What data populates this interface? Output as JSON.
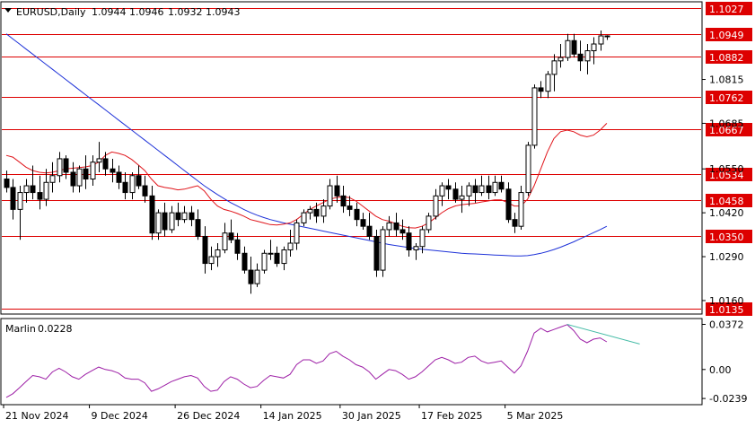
{
  "header": {
    "symbol": "EURUSD,Daily",
    "open": "1.0944",
    "high": "1.0946",
    "low": "1.0932",
    "close": "1.0943"
  },
  "indicator": {
    "name": "Marlin",
    "value": "0.0228",
    "ticks": [
      "0.0372",
      "0.00",
      "-0.0239"
    ]
  },
  "price_axis_ticks": [
    "1.0815",
    "1.0685",
    "1.0550",
    "1.0420",
    "1.0290",
    "1.0160"
  ],
  "levels": [
    {
      "label": "1.1027",
      "value": 1.1027
    },
    {
      "label": "1.0949",
      "value": 1.0949
    },
    {
      "label": "1.0882",
      "value": 1.0882
    },
    {
      "label": "1.0762",
      "value": 1.0762
    },
    {
      "label": "1.0667",
      "value": 1.0667
    },
    {
      "label": "1.0534",
      "value": 1.0534
    },
    {
      "label": "1.0458",
      "value": 1.0458
    },
    {
      "label": "1.0350",
      "value": 1.035
    },
    {
      "label": "1.0135",
      "value": 1.0135
    }
  ],
  "x_axis_labels": [
    "21 Nov 2024",
    "9 Dec 2024",
    "26 Dec 2024",
    "14 Jan 2025",
    "30 Jan 2025",
    "17 Feb 2025",
    "5 Mar 2025"
  ],
  "colors": {
    "level_line": "#dd0000",
    "level_label_bg": "#dd0000",
    "level_label_text": "#ffffff",
    "ma_slow": "#1e32d8",
    "ma_fast": "#e0151b",
    "indicator_line": "#9d1fa6",
    "trendline": "#44bba6",
    "candle_up": "#ffffff",
    "candle_down": "#000000",
    "frame": "#000000"
  },
  "chart_data": {
    "type": "candlestick",
    "symbol": "EURUSD",
    "timeframe": "Daily",
    "ylim": [
      1.012,
      1.1045
    ],
    "candles": [
      [
        1.052,
        1.0545,
        1.048,
        1.0495
      ],
      [
        1.0495,
        1.052,
        1.04,
        1.043
      ],
      [
        1.043,
        1.05,
        1.034,
        1.048
      ],
      [
        1.048,
        1.052,
        1.045,
        1.05
      ],
      [
        1.05,
        1.056,
        1.046,
        1.048
      ],
      [
        1.048,
        1.053,
        1.043,
        1.046
      ],
      [
        1.046,
        1.055,
        1.044,
        1.051
      ],
      [
        1.051,
        1.057,
        1.048,
        1.053
      ],
      [
        1.053,
        1.06,
        1.051,
        1.058
      ],
      [
        1.058,
        1.059,
        1.052,
        1.054
      ],
      [
        1.054,
        1.057,
        1.048,
        1.05
      ],
      [
        1.05,
        1.056,
        1.048,
        1.055
      ],
      [
        1.055,
        1.059,
        1.049,
        1.052
      ],
      [
        1.052,
        1.059,
        1.05,
        1.057
      ],
      [
        1.057,
        1.063,
        1.054,
        1.058
      ],
      [
        1.058,
        1.06,
        1.053,
        1.055
      ],
      [
        1.055,
        1.058,
        1.051,
        1.054
      ],
      [
        1.054,
        1.056,
        1.049,
        1.051
      ],
      [
        1.051,
        1.054,
        1.046,
        1.048
      ],
      [
        1.048,
        1.054,
        1.046,
        1.053
      ],
      [
        1.053,
        1.056,
        1.049,
        1.05
      ],
      [
        1.05,
        1.053,
        1.045,
        1.047
      ],
      [
        1.047,
        1.05,
        1.034,
        1.036
      ],
      [
        1.036,
        1.043,
        1.034,
        1.042
      ],
      [
        1.042,
        1.045,
        1.035,
        1.037
      ],
      [
        1.037,
        1.044,
        1.036,
        1.042
      ],
      [
        1.042,
        1.045,
        1.038,
        1.04
      ],
      [
        1.04,
        1.044,
        1.039,
        1.042
      ],
      [
        1.042,
        1.044,
        1.038,
        1.04
      ],
      [
        1.04,
        1.043,
        1.034,
        1.035
      ],
      [
        1.035,
        1.038,
        1.024,
        1.027
      ],
      [
        1.027,
        1.032,
        1.025,
        1.029
      ],
      [
        1.029,
        1.033,
        1.026,
        1.031
      ],
      [
        1.031,
        1.039,
        1.03,
        1.036
      ],
      [
        1.036,
        1.04,
        1.033,
        1.034
      ],
      [
        1.034,
        1.036,
        1.028,
        1.03
      ],
      [
        1.03,
        1.032,
        1.024,
        1.025
      ],
      [
        1.025,
        1.029,
        1.018,
        1.021
      ],
      [
        1.021,
        1.027,
        1.02,
        1.025
      ],
      [
        1.025,
        1.031,
        1.024,
        1.03
      ],
      [
        1.03,
        1.034,
        1.028,
        1.03
      ],
      [
        1.03,
        1.032,
        1.026,
        1.027
      ],
      [
        1.027,
        1.032,
        1.025,
        1.031
      ],
      [
        1.031,
        1.037,
        1.029,
        1.033
      ],
      [
        1.033,
        1.04,
        1.031,
        1.039
      ],
      [
        1.039,
        1.043,
        1.038,
        1.042
      ],
      [
        1.042,
        1.044,
        1.04,
        1.043
      ],
      [
        1.043,
        1.045,
        1.039,
        1.041
      ],
      [
        1.041,
        1.046,
        1.039,
        1.044
      ],
      [
        1.044,
        1.052,
        1.043,
        1.05
      ],
      [
        1.05,
        1.053,
        1.045,
        1.047
      ],
      [
        1.047,
        1.05,
        1.042,
        1.044
      ],
      [
        1.044,
        1.047,
        1.041,
        1.043
      ],
      [
        1.043,
        1.045,
        1.038,
        1.04
      ],
      [
        1.04,
        1.042,
        1.037,
        1.038
      ],
      [
        1.038,
        1.042,
        1.034,
        1.035
      ],
      [
        1.035,
        1.037,
        1.023,
        1.025
      ],
      [
        1.025,
        1.038,
        1.023,
        1.037
      ],
      [
        1.037,
        1.041,
        1.035,
        1.039
      ],
      [
        1.039,
        1.042,
        1.035,
        1.037
      ],
      [
        1.037,
        1.04,
        1.034,
        1.036
      ],
      [
        1.036,
        1.038,
        1.029,
        1.031
      ],
      [
        1.031,
        1.033,
        1.028,
        1.032
      ],
      [
        1.032,
        1.038,
        1.03,
        1.037
      ],
      [
        1.037,
        1.042,
        1.036,
        1.041
      ],
      [
        1.041,
        1.049,
        1.04,
        1.047
      ],
      [
        1.047,
        1.051,
        1.044,
        1.05
      ],
      [
        1.05,
        1.052,
        1.046,
        1.049
      ],
      [
        1.049,
        1.051,
        1.045,
        1.046
      ],
      [
        1.046,
        1.05,
        1.042,
        1.047
      ],
      [
        1.047,
        1.051,
        1.044,
        1.05
      ],
      [
        1.05,
        1.052,
        1.045,
        1.048
      ],
      [
        1.048,
        1.053,
        1.047,
        1.05
      ],
      [
        1.05,
        1.053,
        1.046,
        1.048
      ],
      [
        1.048,
        1.053,
        1.047,
        1.051
      ],
      [
        1.051,
        1.053,
        1.048,
        1.049
      ],
      [
        1.049,
        1.051,
        1.039,
        1.04
      ],
      [
        1.04,
        1.042,
        1.036,
        1.038
      ],
      [
        1.038,
        1.05,
        1.037,
        1.048
      ],
      [
        1.048,
        1.063,
        1.047,
        1.062
      ],
      [
        1.062,
        1.08,
        1.061,
        1.079
      ],
      [
        1.079,
        1.081,
        1.076,
        1.078
      ],
      [
        1.078,
        1.084,
        1.076,
        1.083
      ],
      [
        1.083,
        1.089,
        1.078,
        1.087
      ],
      [
        1.087,
        1.092,
        1.085,
        1.088
      ],
      [
        1.088,
        1.095,
        1.087,
        1.093
      ],
      [
        1.093,
        1.095,
        1.088,
        1.089
      ],
      [
        1.089,
        1.093,
        1.084,
        1.087
      ],
      [
        1.087,
        1.092,
        1.083,
        1.09
      ],
      [
        1.09,
        1.094,
        1.086,
        1.092
      ],
      [
        1.092,
        1.096,
        1.09,
        1.0944
      ],
      [
        1.0944,
        1.0946,
        1.0932,
        1.0943
      ]
    ],
    "ma_slow": [
      1.095,
      1.0935,
      1.092,
      1.0905,
      1.089,
      1.0875,
      1.086,
      1.0845,
      1.083,
      1.0815,
      1.08,
      1.0785,
      1.077,
      1.0755,
      1.074,
      1.0725,
      1.071,
      1.0695,
      1.068,
      1.0665,
      1.065,
      1.0635,
      1.062,
      1.0605,
      1.059,
      1.0575,
      1.056,
      1.0545,
      1.053,
      1.0515,
      1.05,
      1.0487,
      1.0474,
      1.0462,
      1.045,
      1.044,
      1.043,
      1.0421,
      1.0413,
      1.0406,
      1.04,
      1.0395,
      1.039,
      1.0386,
      1.0382,
      1.0378,
      1.0374,
      1.037,
      1.0366,
      1.0362,
      1.0358,
      1.0354,
      1.035,
      1.0346,
      1.0342,
      1.0338,
      1.0334,
      1.033,
      1.0326,
      1.0323,
      1.032,
      1.0317,
      1.0314,
      1.0312,
      1.031,
      1.0308,
      1.0306,
      1.0304,
      1.0302,
      1.03,
      1.0299,
      1.0298,
      1.0297,
      1.0296,
      1.0295,
      1.0294,
      1.0293,
      1.0292,
      1.0292,
      1.0293,
      1.0296,
      1.03,
      1.0305,
      1.0311,
      1.0318,
      1.0326,
      1.0334,
      1.0343,
      1.0352,
      1.0361,
      1.037,
      1.038
    ],
    "ma_fast": [
      1.059,
      1.0585,
      1.057,
      1.0555,
      1.0545,
      1.054,
      1.0538,
      1.054,
      1.0545,
      1.055,
      1.0552,
      1.0554,
      1.0556,
      1.056,
      1.057,
      1.059,
      1.06,
      1.0596,
      1.059,
      1.0578,
      1.0562,
      1.0545,
      1.052,
      1.05,
      1.0495,
      1.0492,
      1.0488,
      1.049,
      1.0495,
      1.05,
      1.0485,
      1.046,
      1.044,
      1.043,
      1.0425,
      1.0418,
      1.041,
      1.04,
      1.0395,
      1.039,
      1.0385,
      1.0384,
      1.0386,
      1.039,
      1.04,
      1.0415,
      1.043,
      1.044,
      1.045,
      1.046,
      1.0465,
      1.0468,
      1.0465,
      1.0455,
      1.044,
      1.0425,
      1.041,
      1.04,
      1.0395,
      1.0388,
      1.038,
      1.0376,
      1.0375,
      1.038,
      1.039,
      1.0405,
      1.042,
      1.0432,
      1.044,
      1.0444,
      1.0446,
      1.0448,
      1.0452,
      1.0455,
      1.0458,
      1.0458,
      1.045,
      1.044,
      1.044,
      1.046,
      1.05,
      1.055,
      1.06,
      1.064,
      1.066,
      1.0665,
      1.066,
      1.065,
      1.0645,
      1.065,
      1.0665,
      1.0685
    ],
    "indicator": {
      "name": "Marlin",
      "ylim": [
        -0.029,
        0.042
      ],
      "values": [
        -0.023,
        -0.02,
        -0.015,
        -0.01,
        -0.005,
        -0.006,
        -0.008,
        -0.002,
        0.001,
        -0.002,
        -0.006,
        -0.008,
        -0.004,
        -0.001,
        0.002,
        0.0,
        -0.001,
        -0.003,
        -0.007,
        -0.008,
        -0.008,
        -0.011,
        -0.018,
        -0.016,
        -0.013,
        -0.01,
        -0.008,
        -0.006,
        -0.005,
        -0.007,
        -0.014,
        -0.018,
        -0.017,
        -0.01,
        -0.006,
        -0.008,
        -0.012,
        -0.015,
        -0.014,
        -0.009,
        -0.005,
        -0.006,
        -0.007,
        -0.004,
        0.004,
        0.008,
        0.008,
        0.005,
        0.007,
        0.013,
        0.015,
        0.011,
        0.008,
        0.004,
        0.002,
        -0.002,
        -0.008,
        -0.004,
        0.0,
        -0.001,
        -0.004,
        -0.008,
        -0.006,
        -0.002,
        0.003,
        0.008,
        0.01,
        0.008,
        0.005,
        0.006,
        0.01,
        0.011,
        0.007,
        0.005,
        0.006,
        0.007,
        0.002,
        -0.003,
        0.003,
        0.015,
        0.03,
        0.034,
        0.031,
        0.033,
        0.035,
        0.037,
        0.032,
        0.025,
        0.022,
        0.025,
        0.026,
        0.0228
      ]
    },
    "trendline": {
      "from": [
        85,
        0.0372
      ],
      "to": [
        96,
        0.021
      ]
    }
  }
}
